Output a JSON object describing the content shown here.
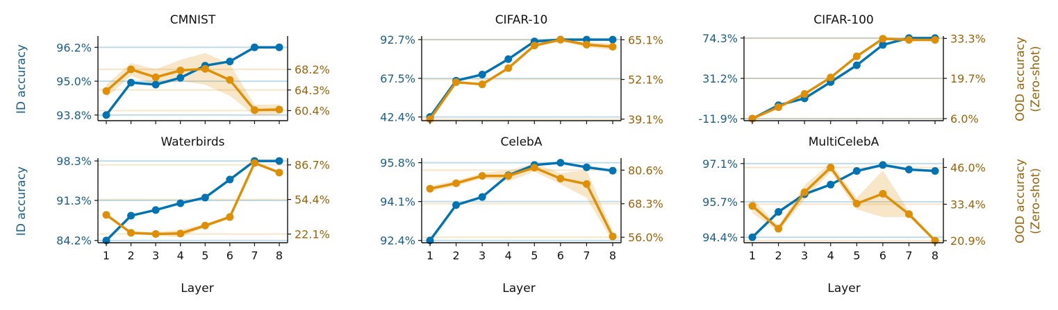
{
  "colors": {
    "id": "#0173b2",
    "ood": "#de8f05",
    "id_text": "#1b5e8a",
    "ood_text": "#9a6409"
  },
  "labels": {
    "id_axis": "ID accuracy",
    "ood_axis_line1": "OOD accuracy",
    "ood_axis_line2": "(Zero-shot)",
    "x_axis": "Layer"
  },
  "chart_data": [
    {
      "type": "line",
      "title": "CMNIST",
      "categories": [
        1,
        2,
        3,
        4,
        5,
        6,
        7,
        8
      ],
      "id_ticks": [
        "96.2%",
        "95.0%",
        "93.8%"
      ],
      "id_tick_values": [
        96.2,
        95.0,
        93.8
      ],
      "id_ylim": [
        93.6,
        96.6
      ],
      "ood_ticks": [
        "68.2%",
        "64.3%",
        "60.4%"
      ],
      "ood_tick_values": [
        68.2,
        64.3,
        60.4
      ],
      "ood_ylim": [
        58.5,
        74.5
      ],
      "series": [
        {
          "name": "ID accuracy",
          "values": [
            93.8,
            94.95,
            94.88,
            95.12,
            95.55,
            95.7,
            96.2,
            96.2
          ],
          "baseline": 96.2
        },
        {
          "name": "OOD accuracy (Zero-shot)",
          "values": [
            64.1,
            68.2,
            66.7,
            68.0,
            68.3,
            66.2,
            60.5,
            60.6
          ],
          "band": [
            1.2,
            1.2,
            1.5,
            2.0,
            3.0,
            3.0,
            1.0,
            1.0
          ],
          "baseline": 68.2
        }
      ]
    },
    {
      "type": "line",
      "title": "CIFAR-10",
      "categories": [
        1,
        2,
        3,
        4,
        5,
        6,
        7,
        8
      ],
      "id_ticks": [
        "92.7%",
        "67.5%",
        "42.4%"
      ],
      "id_tick_values": [
        92.7,
        67.5,
        42.4
      ],
      "id_ylim": [
        40.0,
        95.0
      ],
      "ood_ticks": [
        "65.1%",
        "52.1%",
        "39.1%"
      ],
      "ood_tick_values": [
        65.1,
        52.1,
        39.1
      ],
      "ood_ylim": [
        38.6,
        66.3
      ],
      "series": [
        {
          "name": "ID accuracy",
          "values": [
            42.4,
            66.0,
            70.0,
            80.0,
            91.5,
            92.7,
            92.7,
            92.7
          ],
          "baseline": 92.7
        },
        {
          "name": "OOD accuracy (Zero-shot)",
          "values": [
            39.1,
            51.2,
            50.5,
            55.8,
            63.2,
            65.1,
            63.5,
            62.8
          ],
          "band": [
            0,
            0.3,
            0.4,
            0.5,
            0.6,
            0.5,
            0.8,
            1.0
          ],
          "baseline": 65.1
        }
      ]
    },
    {
      "type": "line",
      "title": "CIFAR-100",
      "categories": [
        1,
        2,
        3,
        4,
        5,
        6,
        7,
        8
      ],
      "id_ticks": [
        "74.3%",
        "31.2%",
        "-11.9%"
      ],
      "id_tick_values": [
        74.3,
        31.2,
        -11.9
      ],
      "id_ylim": [
        -14.0,
        76.4
      ],
      "ood_ticks": [
        "33.3%",
        "19.7%",
        "6.0%"
      ],
      "ood_tick_values": [
        33.3,
        19.7,
        6.0
      ],
      "ood_ylim": [
        5.3,
        34.1
      ],
      "series": [
        {
          "name": "ID accuracy",
          "values": [
            -11.9,
            2.5,
            9.8,
            27.2,
            45.2,
            67.0,
            74.3,
            74.3
          ],
          "baseline": 74.3
        },
        {
          "name": "OOD accuracy (Zero-shot)",
          "values": [
            6.0,
            9.9,
            14.4,
            20.0,
            27.2,
            33.2,
            32.8,
            32.8
          ],
          "band": [
            0,
            0.3,
            0.4,
            0.5,
            0.5,
            0.5,
            0.4,
            0.4
          ],
          "baseline": 33.3
        }
      ]
    },
    {
      "type": "line",
      "title": "Waterbirds",
      "categories": [
        1,
        2,
        3,
        4,
        5,
        6,
        7,
        8
      ],
      "id_ticks": [
        "98.3%",
        "91.3%",
        "84.2%"
      ],
      "id_tick_values": [
        98.3,
        91.3,
        84.2
      ],
      "id_ylim": [
        83.8,
        98.8
      ],
      "ood_ticks": [
        "86.7%",
        "54.4%",
        "22.1%"
      ],
      "ood_tick_values": [
        86.7,
        54.4,
        22.1
      ],
      "ood_ylim": [
        14.0,
        93.0
      ],
      "series": [
        {
          "name": "ID accuracy",
          "values": [
            84.2,
            88.6,
            89.6,
            90.8,
            91.8,
            95.0,
            98.3,
            98.3
          ],
          "baseline": 98.3
        },
        {
          "name": "OOD accuracy (Zero-shot)",
          "values": [
            40.0,
            23.2,
            22.2,
            22.6,
            30.0,
            38.0,
            88.5,
            79.5
          ],
          "band": [
            1.5,
            1.0,
            1.5,
            3.5,
            1.5,
            1.5,
            1.0,
            1.5
          ],
          "baseline": 22.1
        }
      ]
    },
    {
      "type": "line",
      "title": "CelebA",
      "categories": [
        1,
        2,
        3,
        4,
        5,
        6,
        7,
        8
      ],
      "id_ticks": [
        "95.8%",
        "94.1%",
        "92.4%"
      ],
      "id_tick_values": [
        95.8,
        94.1,
        92.4
      ],
      "id_ylim": [
        92.3,
        96.0
      ],
      "ood_ticks": [
        "80.6%",
        "68.3%",
        "56.0%"
      ],
      "ood_tick_values": [
        80.6,
        68.3,
        56.0
      ],
      "ood_ylim": [
        54.0,
        85.0
      ],
      "series": [
        {
          "name": "ID accuracy",
          "values": [
            92.4,
            93.95,
            94.3,
            95.25,
            95.7,
            95.8,
            95.6,
            95.45
          ],
          "baseline": 95.8
        },
        {
          "name": "OOD accuracy (Zero-shot)",
          "values": [
            73.8,
            75.8,
            78.5,
            78.5,
            81.5,
            77.5,
            75.5,
            56.3
          ],
          "band": [
            1.0,
            1.0,
            1.0,
            2.0,
            1.5,
            2.0,
            5.0,
            2.0
          ],
          "baseline": 80.6
        }
      ]
    },
    {
      "type": "line",
      "title": "MultiCelebA",
      "categories": [
        1,
        2,
        3,
        4,
        5,
        6,
        7,
        8
      ],
      "id_ticks": [
        "97.1%",
        "95.7%",
        "94.4%"
      ],
      "id_tick_values": [
        97.1,
        95.7,
        94.4
      ],
      "id_ylim": [
        94.2,
        97.3
      ],
      "ood_ticks": [
        "46.0%",
        "33.4%",
        "20.9%"
      ],
      "ood_tick_values": [
        46.0,
        33.4,
        20.9
      ],
      "ood_ylim": [
        20.2,
        49.2
      ],
      "series": [
        {
          "name": "ID accuracy",
          "values": [
            94.4,
            95.33,
            95.98,
            96.33,
            96.83,
            97.05,
            96.88,
            96.83
          ],
          "baseline": 97.1
        },
        {
          "name": "OOD accuracy (Zero-shot)",
          "values": [
            32.8,
            25.0,
            37.5,
            46.0,
            33.6,
            37.0,
            30.0,
            20.9
          ],
          "band": [
            2.5,
            1.0,
            2.5,
            1.5,
            2.0,
            8.0,
            1.0,
            0.5
          ],
          "baseline": 33.4
        }
      ]
    }
  ]
}
